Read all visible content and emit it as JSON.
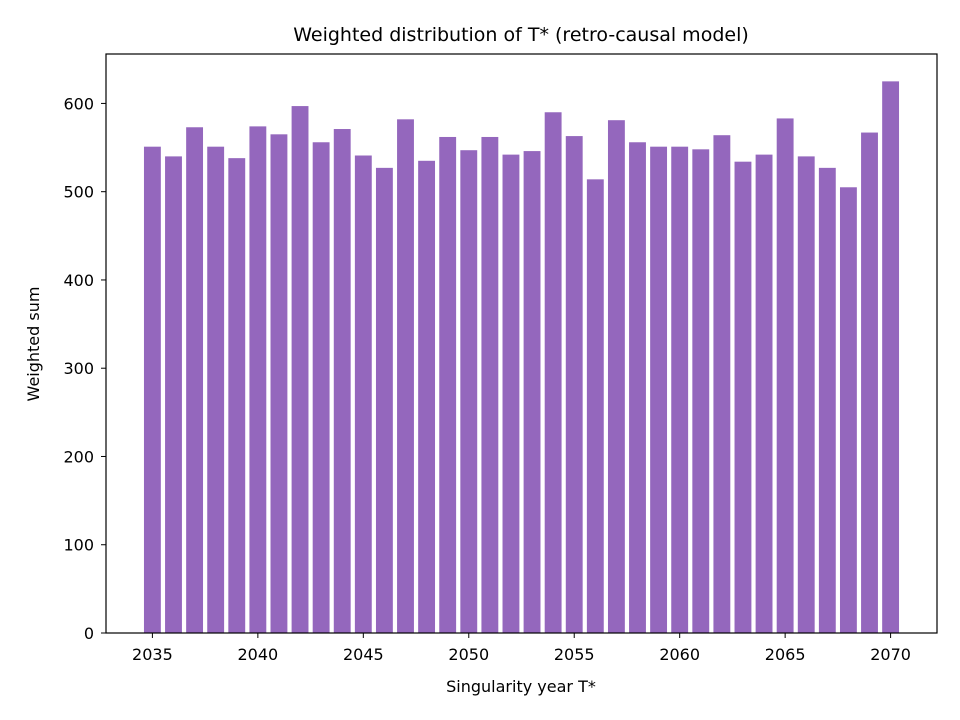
{
  "chart_data": {
    "type": "bar",
    "title": "Weighted distribution of T* (retro-causal model)",
    "xlabel": "Singularity year T*",
    "ylabel": "Weighted sum",
    "bar_color": "#9467bd",
    "x": [
      2035,
      2036,
      2037,
      2038,
      2039,
      2040,
      2041,
      2042,
      2043,
      2044,
      2045,
      2046,
      2047,
      2048,
      2049,
      2050,
      2051,
      2052,
      2053,
      2054,
      2055,
      2056,
      2057,
      2058,
      2059,
      2060,
      2061,
      2062,
      2063,
      2064,
      2065,
      2066,
      2067,
      2068,
      2069,
      2070
    ],
    "values": [
      551,
      540,
      573,
      551,
      538,
      574,
      565,
      597,
      556,
      571,
      541,
      527,
      582,
      535,
      562,
      547,
      562,
      542,
      546,
      590,
      563,
      514,
      581,
      556,
      551,
      551,
      548,
      564,
      534,
      542,
      583,
      540,
      527,
      505,
      567,
      625
    ],
    "xlim": [
      2032.8,
      2072.2
    ],
    "ylim": [
      0,
      656
    ],
    "x_ticks": [
      2035,
      2040,
      2045,
      2050,
      2055,
      2060,
      2065,
      2070
    ],
    "y_ticks": [
      0,
      100,
      200,
      300,
      400,
      500,
      600
    ],
    "bar_width": 0.8,
    "grid": false,
    "legend": "none"
  }
}
